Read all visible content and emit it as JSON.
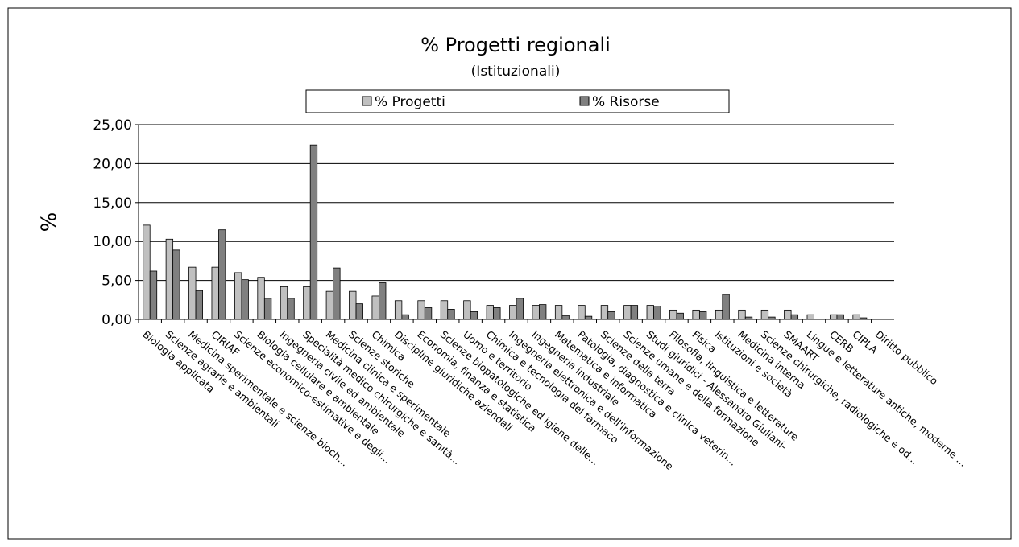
{
  "chart_data": {
    "type": "bar",
    "title": "% Progetti regionali",
    "subtitle": "(Istituzionali)",
    "y_label": "%",
    "categories": [
      "Biologia applicata",
      "Scienze agrarie e ambientali",
      "Medicina sperimentale e scienze bioch...",
      "CIRIAF",
      "Scienze economico-estimative e degli...",
      "Biologia cellulare e ambientale",
      "Ingegneria civile ed ambientale",
      "Specialità medico chirurgiche e sanità...",
      "Medicina clinica e sperimentale",
      "Scienze storiche",
      "Chimica",
      "Discipline giuridiche aziendali",
      "Economia, finanza e statistica",
      "Scienze biopatologiche ed igiene delle...",
      "Uomo e territorio",
      "Chimica e tecnologia del farmaco",
      "Ingegneria elettronica e dell'informazione",
      "Ingegneria industriale",
      "Matematica e informatica",
      "Patologia, diagnostica e clinica veterin...",
      "Scienze della terra",
      "Scienze umane e della formazione",
      "Studi giuridici - Alessandro Giuliani-",
      "Filosofia, linguistica e letterature",
      "Fisica",
      "Istituzioni e società",
      "Medicina interna",
      "Scienze chirurgiche, radiologiche e od...",
      "SMAART",
      "Lingue e letterature antiche, moderne ...",
      "CERB",
      "CIPLA",
      "Diritto pubblico"
    ],
    "series": [
      {
        "name": "% Progetti",
        "color": "#c0c0c0",
        "values": [
          12.1,
          10.3,
          6.7,
          6.7,
          6.0,
          5.4,
          4.2,
          4.2,
          3.6,
          3.6,
          3.0,
          2.4,
          2.4,
          2.4,
          2.4,
          1.8,
          1.8,
          1.8,
          1.8,
          1.8,
          1.8,
          1.8,
          1.8,
          1.2,
          1.2,
          1.2,
          1.2,
          1.2,
          1.2,
          0.6,
          0.6,
          0.6,
          0
        ]
      },
      {
        "name": "% Risorse",
        "color": "#808080",
        "values": [
          6.2,
          8.9,
          3.7,
          11.5,
          5.1,
          2.7,
          2.7,
          22.4,
          6.6,
          2.0,
          4.7,
          0.6,
          1.5,
          1.3,
          1.0,
          1.5,
          2.7,
          1.9,
          0.5,
          0.4,
          1.0,
          1.8,
          1.7,
          0.8,
          1.0,
          3.2,
          0.3,
          0.3,
          0.6,
          0,
          0.6,
          0.2,
          0
        ]
      }
    ],
    "ylim": [
      0,
      25
    ],
    "yticks": [
      {
        "value": 0,
        "label": "0,00"
      },
      {
        "value": 5,
        "label": "5,00"
      },
      {
        "value": 10,
        "label": "10,00"
      },
      {
        "value": 15,
        "label": "15,00"
      },
      {
        "value": 20,
        "label": "20,00"
      },
      {
        "value": 25,
        "label": "25,00"
      }
    ],
    "grid": true,
    "legend": "top"
  }
}
